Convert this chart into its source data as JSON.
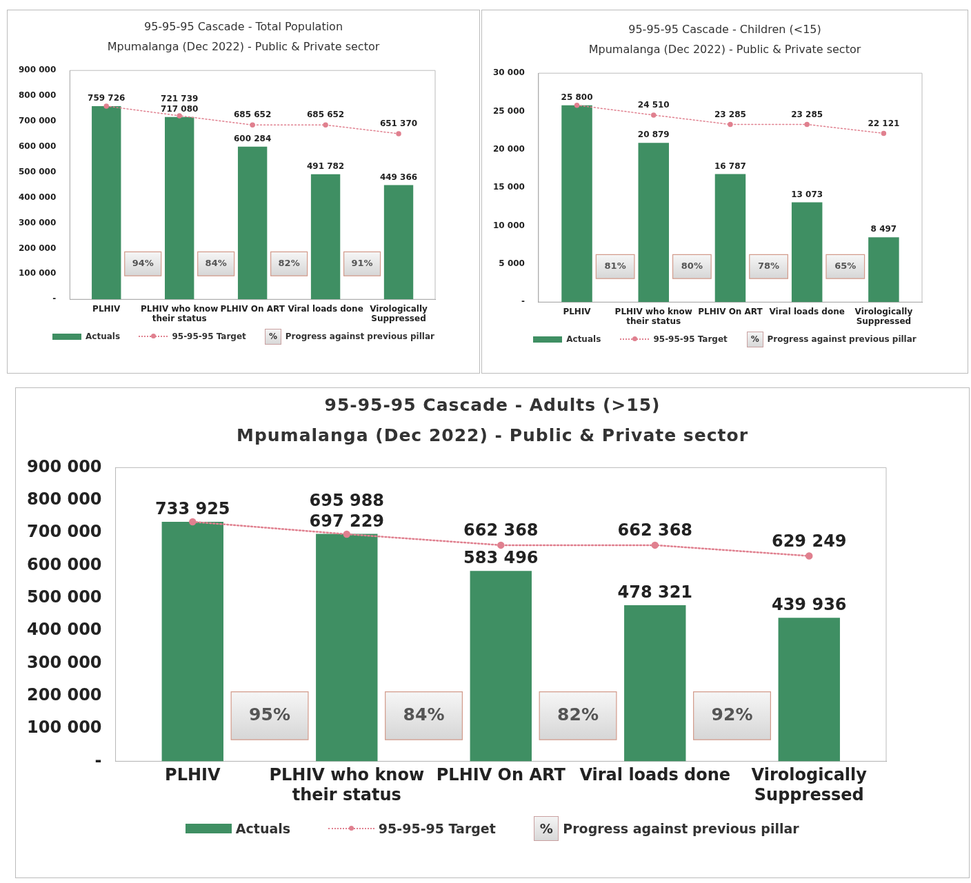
{
  "chart_data": [
    {
      "type": "bar",
      "title": "95-95-95 Cascade - Total Population",
      "subtitle": "Mpumalanga (Dec 2022) - Public & Private sector",
      "categories": [
        "PLHIV",
        "PLHIV who know their status",
        "PLHIV On ART",
        "Viral loads done",
        "Virologically Suppressed"
      ],
      "series": [
        {
          "type": "bar",
          "name": "Actuals",
          "color": "#3f8f63",
          "values": [
            759726,
            717080,
            600284,
            491782,
            449366
          ],
          "value_labels": [
            "759 726",
            "717 080",
            "600 284",
            "491 782",
            "449 366"
          ]
        },
        {
          "type": "line",
          "name": "95-95-95 Target",
          "color": "#e0808f",
          "marker": "circle",
          "line_style": "dotted",
          "values": [
            759726,
            721739,
            685652,
            685652,
            651370
          ],
          "value_labels": [
            null,
            "721 739",
            "685 652",
            "685 652",
            "651 370"
          ]
        }
      ],
      "ylim": [
        0,
        900000
      ],
      "yticks": [
        {
          "value": 0,
          "label": "-"
        },
        {
          "value": 100000,
          "label": "100 000"
        },
        {
          "value": 200000,
          "label": "200 000"
        },
        {
          "value": 300000,
          "label": "300 000"
        },
        {
          "value": 400000,
          "label": "400 000"
        },
        {
          "value": 500000,
          "label": "500 000"
        },
        {
          "value": 600000,
          "label": "600 000"
        },
        {
          "value": 700000,
          "label": "700 000"
        },
        {
          "value": 800000,
          "label": "800 000"
        },
        {
          "value": 900000,
          "label": "900 000"
        }
      ],
      "grid": false,
      "legend": "bottom",
      "annotations": [
        "94%",
        "84%",
        "82%",
        "91%",
        "%",
        "Progress against previous pillar"
      ]
    },
    {
      "type": "bar",
      "title": "95-95-95 Cascade - Children (<15)",
      "subtitle": "Mpumalanga (Dec 2022) - Public & Private sector",
      "categories": [
        "PLHIV",
        "PLHIV who know their status",
        "PLHIV On ART",
        "Viral loads done",
        "Virologically Suppressed"
      ],
      "series": [
        {
          "type": "bar",
          "name": "Actuals",
          "color": "#3f8f63",
          "values": [
            25800,
            20879,
            16787,
            13073,
            8497
          ],
          "value_labels": [
            "25 800",
            "20 879",
            "16 787",
            "13 073",
            "8 497"
          ]
        },
        {
          "type": "line",
          "name": "95-95-95 Target",
          "color": "#e0808f",
          "marker": "circle",
          "line_style": "dotted",
          "values": [
            25800,
            24510,
            23285,
            23285,
            22121
          ],
          "value_labels": [
            null,
            "24 510",
            "23 285",
            "23 285",
            "22 121"
          ]
        }
      ],
      "ylim": [
        0,
        30000
      ],
      "yticks": [
        {
          "value": 0,
          "label": "-"
        },
        {
          "value": 5000,
          "label": "5 000"
        },
        {
          "value": 10000,
          "label": "10 000"
        },
        {
          "value": 15000,
          "label": "15 000"
        },
        {
          "value": 20000,
          "label": "20 000"
        },
        {
          "value": 25000,
          "label": "25 000"
        },
        {
          "value": 30000,
          "label": "30 000"
        }
      ],
      "grid": false,
      "legend": "bottom",
      "annotations": [
        "81%",
        "80%",
        "78%",
        "65%",
        "%",
        "Progress against previous pillar"
      ]
    },
    {
      "type": "bar",
      "title": "95-95-95 Cascade - Adults (>15)",
      "subtitle": "Mpumalanga (Dec 2022) - Public & Private sector",
      "categories": [
        "PLHIV",
        "PLHIV who know their status",
        "PLHIV On ART",
        "Viral loads done",
        "Virologically Suppressed"
      ],
      "series": [
        {
          "type": "bar",
          "name": "Actuals",
          "color": "#3f8f63",
          "values": [
            733925,
            697229,
            583496,
            478321,
            439936
          ],
          "value_labels": [
            "733 925",
            "697 229",
            "583 496",
            "478 321",
            "439 936"
          ]
        },
        {
          "type": "line",
          "name": "95-95-95 Target",
          "color": "#e0808f",
          "marker": "circle",
          "line_style": "dotted",
          "values": [
            733925,
            695988,
            662368,
            662368,
            629249
          ],
          "value_labels": [
            null,
            "695 988",
            "662 368",
            "662 368",
            "629 249"
          ]
        }
      ],
      "ylim": [
        0,
        900000
      ],
      "yticks": [
        {
          "value": 0,
          "label": "-"
        },
        {
          "value": 100000,
          "label": "100 000"
        },
        {
          "value": 200000,
          "label": "200 000"
        },
        {
          "value": 300000,
          "label": "300 000"
        },
        {
          "value": 400000,
          "label": "400 000"
        },
        {
          "value": 500000,
          "label": "500 000"
        },
        {
          "value": 600000,
          "label": "600 000"
        },
        {
          "value": 700000,
          "label": "700 000"
        },
        {
          "value": 800000,
          "label": "800 000"
        },
        {
          "value": 900000,
          "label": "900 000"
        }
      ],
      "grid": false,
      "legend": "bottom",
      "annotations": [
        "95%",
        "84%",
        "82%",
        "92%",
        "%",
        "Progress against previous pillar"
      ]
    }
  ]
}
